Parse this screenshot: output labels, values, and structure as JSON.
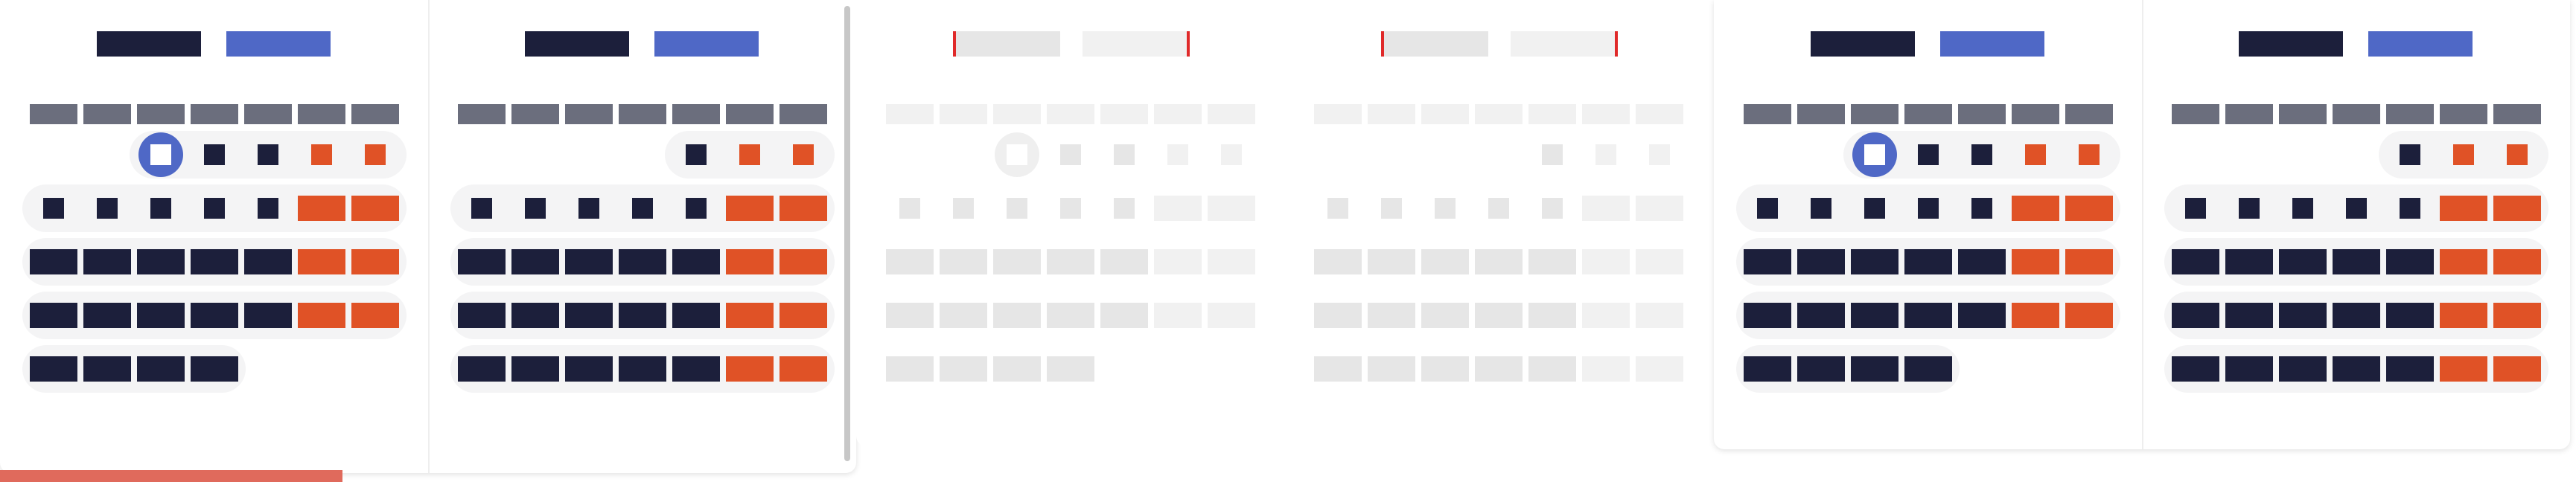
{
  "colors": {
    "navy": "#1c1f3b",
    "blue": "#4f68c6",
    "orange": "#e05226",
    "gray": "#6b6e7d",
    "ghost": "#e6e6e6",
    "ghost_light": "#f1f1f1",
    "ghost_mark": "#e02a2a",
    "row_bg": "#f4f4f5",
    "chevron": "#4f68c6"
  },
  "icons": {
    "prev": "chevron-left-icon",
    "next": "chevron-right-icon"
  },
  "nav": {
    "prev_glyph": "‹",
    "next_glyph": "›"
  },
  "calendars": [
    {
      "name": "calendar-1",
      "style": "normal",
      "panels": [
        {
          "name": "month-left",
          "has_prev": true,
          "has_next": false,
          "weekday_count": 7,
          "rows": [
            {
              "start": 2,
              "cells": [
                "selected",
                "navy",
                "navy",
                "orange",
                "orange"
              ]
            },
            {
              "start": 0,
              "cells": [
                "navy",
                "navy",
                "navy",
                "navy",
                "navy",
                "orange",
                "orange"
              ]
            },
            {
              "start": 0,
              "cells": [
                "navy",
                "navy",
                "navy",
                "navy",
                "navy",
                "orange",
                "orange"
              ]
            },
            {
              "start": 0,
              "cells": [
                "navy",
                "navy",
                "navy",
                "navy",
                "navy",
                "orange",
                "orange"
              ]
            },
            {
              "start": 0,
              "cells": [
                "navy",
                "navy",
                "navy",
                "navy"
              ]
            }
          ]
        },
        {
          "name": "month-right",
          "has_prev": false,
          "has_next": true,
          "weekday_count": 7,
          "rows": [
            {
              "start": 4,
              "cells": [
                "navy",
                "orange",
                "orange"
              ]
            },
            {
              "start": 0,
              "cells": [
                "navy",
                "navy",
                "navy",
                "navy",
                "navy",
                "orange",
                "orange"
              ]
            },
            {
              "start": 0,
              "cells": [
                "navy",
                "navy",
                "navy",
                "navy",
                "navy",
                "orange",
                "orange"
              ]
            },
            {
              "start": 0,
              "cells": [
                "navy",
                "navy",
                "navy",
                "navy",
                "navy",
                "orange",
                "orange"
              ]
            },
            {
              "start": 0,
              "cells": [
                "navy",
                "navy",
                "navy",
                "navy",
                "navy",
                "orange",
                "orange"
              ]
            }
          ]
        }
      ]
    },
    {
      "name": "calendar-2-ghost",
      "style": "ghost",
      "panels": [
        {
          "name": "month-left",
          "has_prev": true,
          "has_next": false,
          "weekday_count": 7,
          "rows": [
            {
              "start": 2,
              "cells": [
                "selected",
                "navy",
                "navy",
                "navy",
                "navy"
              ]
            },
            {
              "start": 0,
              "cells": [
                "navy",
                "navy",
                "navy",
                "navy",
                "navy",
                "navy",
                "navy"
              ]
            },
            {
              "start": 0,
              "cells": [
                "navy",
                "navy",
                "navy",
                "navy",
                "navy",
                "navy",
                "navy"
              ]
            },
            {
              "start": 0,
              "cells": [
                "navy",
                "navy",
                "navy",
                "navy",
                "navy",
                "navy",
                "navy"
              ]
            },
            {
              "start": 0,
              "cells": [
                "navy",
                "navy",
                "navy",
                "navy"
              ]
            }
          ]
        },
        {
          "name": "month-right",
          "has_prev": false,
          "has_next": true,
          "weekday_count": 7,
          "rows": [
            {
              "start": 4,
              "cells": [
                "navy",
                "navy",
                "navy"
              ]
            },
            {
              "start": 0,
              "cells": [
                "navy",
                "navy",
                "navy",
                "navy",
                "navy",
                "navy",
                "navy"
              ]
            },
            {
              "start": 0,
              "cells": [
                "navy",
                "navy",
                "navy",
                "navy",
                "navy",
                "navy",
                "navy"
              ]
            },
            {
              "start": 0,
              "cells": [
                "navy",
                "navy",
                "navy",
                "navy",
                "navy",
                "navy",
                "navy"
              ]
            },
            {
              "start": 0,
              "cells": [
                "navy",
                "navy",
                "navy",
                "navy",
                "navy",
                "navy",
                "navy"
              ]
            }
          ]
        }
      ]
    },
    {
      "name": "calendar-3",
      "style": "normal",
      "panels": [
        {
          "name": "month-left",
          "has_prev": true,
          "has_next": false,
          "weekday_count": 7,
          "rows": [
            {
              "start": 2,
              "cells": [
                "selected",
                "navy",
                "navy",
                "orange",
                "orange"
              ]
            },
            {
              "start": 0,
              "cells": [
                "navy",
                "navy",
                "navy",
                "navy",
                "navy",
                "orange",
                "orange"
              ]
            },
            {
              "start": 0,
              "cells": [
                "navy",
                "navy",
                "navy",
                "navy",
                "navy",
                "orange",
                "orange"
              ]
            },
            {
              "start": 0,
              "cells": [
                "navy",
                "navy",
                "navy",
                "navy",
                "navy",
                "orange",
                "orange"
              ]
            },
            {
              "start": 0,
              "cells": [
                "navy",
                "navy",
                "navy",
                "navy"
              ]
            }
          ]
        },
        {
          "name": "month-right",
          "has_prev": false,
          "has_next": true,
          "weekday_count": 7,
          "rows": [
            {
              "start": 4,
              "cells": [
                "navy",
                "orange",
                "orange"
              ]
            },
            {
              "start": 0,
              "cells": [
                "navy",
                "navy",
                "navy",
                "navy",
                "navy",
                "orange",
                "orange"
              ]
            },
            {
              "start": 0,
              "cells": [
                "navy",
                "navy",
                "navy",
                "navy",
                "navy",
                "orange",
                "orange"
              ]
            },
            {
              "start": 0,
              "cells": [
                "navy",
                "navy",
                "navy",
                "navy",
                "navy",
                "orange",
                "orange"
              ]
            },
            {
              "start": 0,
              "cells": [
                "navy",
                "navy",
                "navy",
                "navy",
                "navy",
                "orange",
                "orange"
              ]
            }
          ]
        }
      ]
    }
  ]
}
